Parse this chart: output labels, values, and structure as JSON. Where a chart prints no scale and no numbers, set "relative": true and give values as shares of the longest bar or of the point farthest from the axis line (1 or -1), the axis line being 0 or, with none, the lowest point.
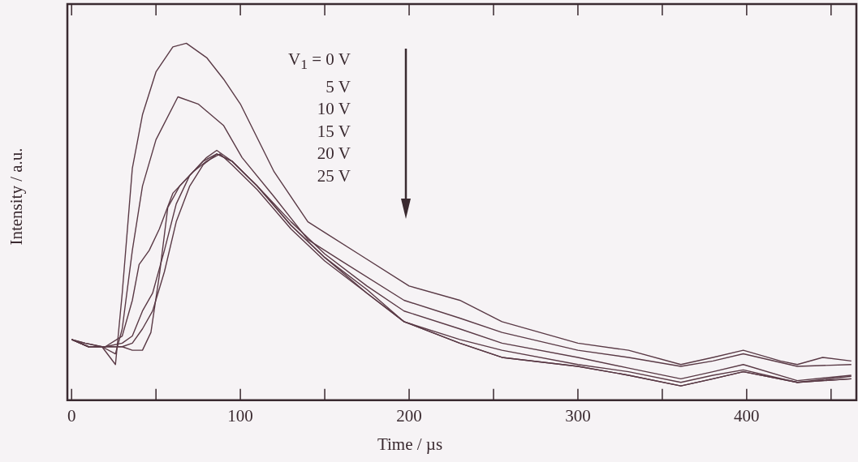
{
  "chart_data": {
    "type": "line",
    "relative": true,
    "xlabel": "Time / µs",
    "ylabel": "Intensity / a.u.",
    "xlim": [
      -2.5,
      465
    ],
    "xticks": [
      0,
      {
        "value": 50,
        "label": null
      },
      100,
      {
        "value": 150,
        "label": null
      },
      200,
      {
        "value": 250,
        "label": null
      },
      300,
      {
        "value": 350,
        "label": null
      },
      400,
      {
        "value": 450,
        "label": null
      }
    ],
    "grid": false,
    "legend": false,
    "marker": "none",
    "line_style": "solid",
    "annotations": [
      "V$_{1}$ = 0 V",
      "5 V",
      "10 V",
      "15 V",
      "20 V",
      "25 V"
    ],
    "series": [
      {
        "color": "#5a3a46",
        "x": [
          0,
          8,
          18,
          26,
          30,
          36,
          42,
          50,
          60,
          68,
          80,
          90,
          100,
          120,
          140,
          150,
          170,
          200,
          230,
          255,
          300,
          330,
          361,
          380,
          398,
          420,
          430,
          445,
          462
        ],
        "values": [
          0.17,
          0.16,
          0.15,
          0.1,
          0.3,
          0.65,
          0.8,
          0.92,
          0.99,
          1.0,
          0.96,
          0.9,
          0.83,
          0.64,
          0.5,
          0.47,
          0.41,
          0.32,
          0.28,
          0.22,
          0.16,
          0.14,
          0.1,
          0.12,
          0.14,
          0.11,
          0.1,
          0.12,
          0.11
        ]
      },
      {
        "color": "#5a3a46",
        "x": [
          0,
          8,
          18,
          26,
          30,
          36,
          42,
          50,
          63,
          75,
          90,
          101,
          120,
          140,
          160,
          197,
          230,
          255,
          300,
          330,
          361,
          380,
          398,
          430,
          462
        ],
        "values": [
          0.17,
          0.16,
          0.15,
          0.13,
          0.2,
          0.42,
          0.6,
          0.73,
          0.85,
          0.83,
          0.77,
          0.68,
          0.57,
          0.45,
          0.39,
          0.28,
          0.23,
          0.19,
          0.14,
          0.12,
          0.095,
          0.11,
          0.13,
          0.095,
          0.1
        ]
      },
      {
        "color": "#5a3a46",
        "x": [
          0,
          10,
          20,
          30,
          36,
          40,
          46,
          52,
          60,
          70,
          80,
          86,
          95,
          110,
          130,
          150,
          175,
          197,
          230,
          255,
          300,
          330,
          361,
          380,
          398,
          430,
          462
        ],
        "values": [
          0.17,
          0.15,
          0.15,
          0.18,
          0.28,
          0.38,
          0.42,
          0.48,
          0.58,
          0.63,
          0.68,
          0.7,
          0.67,
          0.6,
          0.5,
          0.41,
          0.32,
          0.25,
          0.2,
          0.16,
          0.12,
          0.09,
          0.06,
          0.08,
          0.1,
          0.055,
          0.07
        ]
      },
      {
        "color": "#5a3a46",
        "x": [
          0,
          10,
          20,
          30,
          36,
          42,
          48,
          55,
          62,
          70,
          78,
          86,
          95,
          110,
          130,
          150,
          175,
          197,
          230,
          255,
          300,
          330,
          361,
          380,
          398,
          430,
          462
        ],
        "values": [
          0.17,
          0.15,
          0.15,
          0.16,
          0.18,
          0.25,
          0.3,
          0.42,
          0.55,
          0.63,
          0.67,
          0.69,
          0.67,
          0.6,
          0.49,
          0.4,
          0.31,
          0.22,
          0.17,
          0.14,
          0.1,
          0.08,
          0.05,
          0.07,
          0.085,
          0.05,
          0.067
        ]
      },
      {
        "color": "#5a3a46",
        "x": [
          0,
          10,
          20,
          30,
          36,
          42,
          48,
          55,
          62,
          70,
          78,
          86,
          95,
          110,
          130,
          150,
          175,
          197,
          230,
          255,
          300,
          330,
          361,
          380,
          398,
          430,
          462
        ],
        "values": [
          0.17,
          0.15,
          0.15,
          0.15,
          0.16,
          0.2,
          0.25,
          0.36,
          0.5,
          0.6,
          0.66,
          0.69,
          0.67,
          0.6,
          0.49,
          0.4,
          0.3,
          0.22,
          0.16,
          0.12,
          0.095,
          0.07,
          0.04,
          0.06,
          0.08,
          0.05,
          0.06
        ]
      },
      {
        "color": "#5a3a46",
        "x": [
          0,
          10,
          20,
          30,
          36,
          42,
          47,
          52,
          57,
          64,
          72,
          80,
          88,
          95,
          110,
          130,
          150,
          175,
          197,
          230,
          255,
          300,
          330,
          361,
          380,
          398,
          430,
          462
        ],
        "values": [
          0.17,
          0.15,
          0.15,
          0.15,
          0.14,
          0.14,
          0.19,
          0.35,
          0.54,
          0.6,
          0.64,
          0.67,
          0.69,
          0.66,
          0.59,
          0.48,
          0.39,
          0.3,
          0.22,
          0.16,
          0.12,
          0.095,
          0.07,
          0.04,
          0.06,
          0.08,
          0.05,
          0.06
        ]
      }
    ]
  }
}
